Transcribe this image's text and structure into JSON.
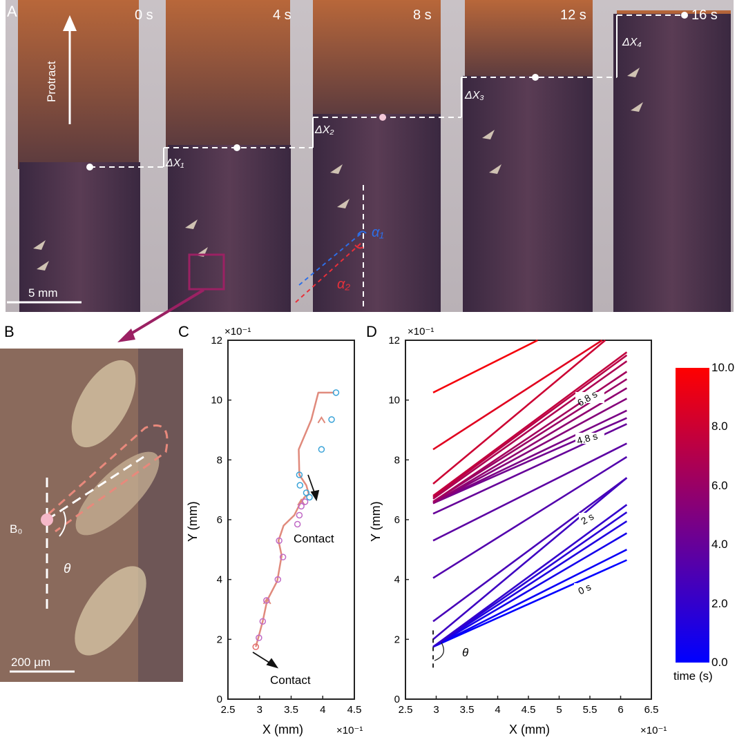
{
  "panels": {
    "A": "A",
    "B": "B",
    "C": "C",
    "D": "D"
  },
  "panelA": {
    "times": [
      "0 s",
      "4 s",
      "8 s",
      "12 s",
      "16 s"
    ],
    "protract": "Protract",
    "dx": [
      "ΔX₁",
      "ΔX₂",
      "ΔX₃",
      "ΔX₄"
    ],
    "alpha1": "α₁",
    "alpha2": "α₂",
    "scalebar": "5 mm",
    "colors": {
      "alpha1": "#2d6fe8",
      "alpha2": "#e8303a",
      "highlight": "#9b2163"
    }
  },
  "panelB": {
    "label_point": "B₀",
    "angle": "θ",
    "scalebar": "200 µm"
  },
  "chart_data": [
    {
      "id": "C",
      "type": "line",
      "xlabel": "X (mm)",
      "ylabel": "Y (mm)",
      "x_scale_label": "×10⁻¹",
      "y_scale_label": "×10⁻¹",
      "xlim": [
        2.5,
        4.5
      ],
      "ylim": [
        0,
        12
      ],
      "xticks": [
        "2.5",
        "3",
        "3.5",
        "4",
        "4.5"
      ],
      "yticks": [
        "0",
        "2",
        "4",
        "6",
        "8",
        "10",
        "12"
      ],
      "annotations": [
        "Contact",
        "Contact"
      ],
      "series": [
        {
          "color": "#e08a7c",
          "x": [
            2.94,
            2.98,
            3.05,
            3.12,
            3.28,
            3.35,
            3.3,
            3.38,
            3.55,
            3.62,
            3.66,
            3.71,
            3.78,
            3.74,
            3.63,
            3.62,
            3.82,
            3.93,
            4.09,
            4.18
          ],
          "y": [
            1.75,
            2.05,
            2.6,
            3.3,
            3.95,
            4.8,
            5.3,
            5.8,
            6.15,
            6.45,
            6.6,
            6.75,
            6.85,
            7.15,
            7.5,
            8.35,
            9.35,
            10.25,
            10.25,
            10.25
          ]
        }
      ],
      "markers": {
        "x": [
          2.94,
          2.99,
          3.05,
          3.11,
          3.29,
          3.37,
          3.31,
          3.6,
          3.63,
          3.66,
          3.72,
          3.79,
          3.74,
          3.64,
          3.63,
          3.98,
          4.14,
          4.21
        ],
        "y": [
          1.75,
          2.05,
          2.6,
          3.3,
          4.0,
          4.75,
          5.3,
          5.85,
          6.15,
          6.45,
          6.6,
          6.75,
          6.9,
          7.15,
          7.5,
          8.35,
          9.35,
          10.25
        ]
      }
    },
    {
      "id": "D",
      "type": "line",
      "xlabel": "X (mm)",
      "ylabel": "Y (mm)",
      "x_scale_label": "×10⁻¹",
      "y_scale_label": "×10⁻¹",
      "xlim": [
        2.5,
        6.5
      ],
      "ylim": [
        0,
        12
      ],
      "xticks": [
        "2.5",
        "3",
        "3.5",
        "4",
        "4.5",
        "5",
        "5.5",
        "6",
        "6.5"
      ],
      "yticks": [
        "0",
        "2",
        "4",
        "6",
        "8",
        "10",
        "12"
      ],
      "angle_label": "θ",
      "time_labels": [
        "0 s",
        "2 s",
        "4.8 s",
        "6.8 s"
      ],
      "colorbar": {
        "label": "time (s)",
        "ticks": [
          "10.0",
          "8.0",
          "6.0",
          "4.0",
          "2.0",
          "0.0"
        ],
        "range": [
          0,
          10
        ],
        "colors": [
          "#0000ff",
          "#ff0000"
        ]
      },
      "lines": [
        {
          "t": 0.0,
          "x0": 2.95,
          "y0": 1.75,
          "x1": 6.1,
          "y1": 4.65
        },
        {
          "t": 0.4,
          "x0": 2.95,
          "y0": 1.75,
          "x1": 6.1,
          "y1": 5.0
        },
        {
          "t": 0.8,
          "x0": 2.95,
          "y0": 1.75,
          "x1": 6.1,
          "y1": 5.55
        },
        {
          "t": 1.2,
          "x0": 2.95,
          "y0": 1.75,
          "x1": 6.1,
          "y1": 5.95
        },
        {
          "t": 1.6,
          "x0": 2.95,
          "y0": 1.75,
          "x1": 6.1,
          "y1": 6.25
        },
        {
          "t": 2.0,
          "x0": 2.95,
          "y0": 1.75,
          "x1": 6.1,
          "y1": 6.5
        },
        {
          "t": 2.4,
          "x0": 2.95,
          "y0": 2.0,
          "x1": 6.1,
          "y1": 7.4
        },
        {
          "t": 2.8,
          "x0": 2.95,
          "y0": 2.6,
          "x1": 6.1,
          "y1": 7.4
        },
        {
          "t": 3.2,
          "x0": 2.95,
          "y0": 4.05,
          "x1": 6.1,
          "y1": 8.1
        },
        {
          "t": 3.6,
          "x0": 2.95,
          "y0": 5.3,
          "x1": 6.1,
          "y1": 8.55
        },
        {
          "t": 4.0,
          "x0": 2.95,
          "y0": 6.2,
          "x1": 6.1,
          "y1": 9.2
        },
        {
          "t": 4.4,
          "x0": 2.95,
          "y0": 6.55,
          "x1": 6.1,
          "y1": 9.4
        },
        {
          "t": 4.8,
          "x0": 2.95,
          "y0": 6.55,
          "x1": 6.1,
          "y1": 9.65
        },
        {
          "t": 5.2,
          "x0": 2.95,
          "y0": 6.55,
          "x1": 6.1,
          "y1": 10.05
        },
        {
          "t": 5.6,
          "x0": 2.95,
          "y0": 6.55,
          "x1": 6.1,
          "y1": 10.4
        },
        {
          "t": 6.0,
          "x0": 2.95,
          "y0": 6.6,
          "x1": 6.1,
          "y1": 10.7
        },
        {
          "t": 6.4,
          "x0": 2.95,
          "y0": 6.6,
          "x1": 6.1,
          "y1": 10.95
        },
        {
          "t": 6.8,
          "x0": 2.95,
          "y0": 6.7,
          "x1": 6.1,
          "y1": 11.3
        },
        {
          "t": 7.2,
          "x0": 2.95,
          "y0": 6.75,
          "x1": 6.1,
          "y1": 11.5
        },
        {
          "t": 7.6,
          "x0": 2.95,
          "y0": 6.8,
          "x1": 6.1,
          "y1": 11.6
        },
        {
          "t": 8.0,
          "x0": 2.95,
          "y0": 7.2,
          "x1": 5.75,
          "y1": 12.0
        },
        {
          "t": 8.8,
          "x0": 2.95,
          "y0": 8.35,
          "x1": 5.7,
          "y1": 12.0
        },
        {
          "t": 9.6,
          "x0": 2.95,
          "y0": 10.25,
          "x1": 4.65,
          "y1": 12.0
        }
      ]
    }
  ]
}
